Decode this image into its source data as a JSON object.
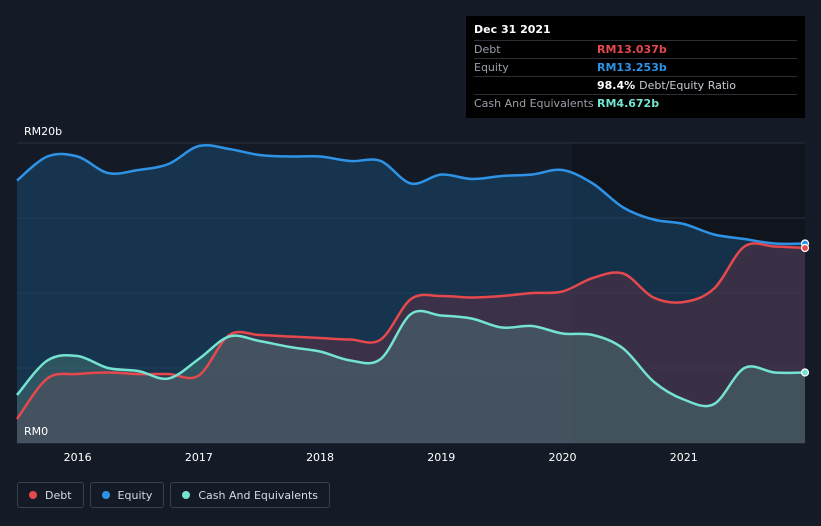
{
  "tooltip": {
    "date": "Dec 31 2021",
    "rows": [
      {
        "label": "Debt",
        "value": "RM13.037b",
        "color": "#e5484d"
      },
      {
        "label": "Equity",
        "value": "RM13.253b",
        "color": "#2e93e6"
      },
      {
        "label": "",
        "value": "98.4%",
        "suffix": "Debt/Equity Ratio",
        "color": "#ffffff"
      },
      {
        "label": "Cash And Equivalents",
        "value": "RM4.672b",
        "color": "#74e3d2"
      }
    ]
  },
  "legend": [
    {
      "label": "Debt",
      "color": "#e5484d"
    },
    {
      "label": "Equity",
      "color": "#2e93e6"
    },
    {
      "label": "Cash And Equivalents",
      "color": "#74e3d2"
    }
  ],
  "chart_data": {
    "type": "area",
    "title": "",
    "xlabel": "",
    "ylabel": "",
    "y_unit": "RM b",
    "ylim": [
      0,
      20
    ],
    "xlim": [
      2015.5,
      2022.0
    ],
    "y_tick_labels": [
      {
        "value": 20,
        "label": "RM20b"
      },
      {
        "value": 0,
        "label": "RM0"
      }
    ],
    "x_tick_labels": [
      "2016",
      "2017",
      "2018",
      "2019",
      "2020",
      "2021"
    ],
    "x_tick_values": [
      2016,
      2017,
      2018,
      2019,
      2020,
      2021
    ],
    "grid": true,
    "legend_position": "bottom-left",
    "series": [
      {
        "name": "Equity",
        "color": "#2e93e6",
        "x": [
          2015.5,
          2015.75,
          2016.0,
          2016.25,
          2016.5,
          2016.75,
          2017.0,
          2017.25,
          2017.5,
          2017.75,
          2018.0,
          2018.25,
          2018.5,
          2018.75,
          2019.0,
          2019.25,
          2019.5,
          2019.75,
          2020.0,
          2020.25,
          2020.5,
          2020.75,
          2021.0,
          2021.25,
          2021.5,
          2021.75,
          2022.0
        ],
        "values": [
          17.5,
          19.1,
          19.1,
          18.0,
          18.2,
          18.6,
          19.8,
          19.6,
          19.2,
          19.1,
          19.1,
          18.8,
          18.8,
          17.3,
          17.9,
          17.6,
          17.8,
          17.9,
          18.2,
          17.3,
          15.7,
          14.9,
          14.6,
          13.9,
          13.6,
          13.3,
          13.3
        ]
      },
      {
        "name": "Debt",
        "color": "#e5484d",
        "x": [
          2015.5,
          2015.75,
          2016.0,
          2016.25,
          2016.5,
          2016.75,
          2017.0,
          2017.25,
          2017.5,
          2017.75,
          2018.0,
          2018.25,
          2018.5,
          2018.75,
          2019.0,
          2019.25,
          2019.5,
          2019.75,
          2020.0,
          2020.25,
          2020.5,
          2020.75,
          2021.0,
          2021.25,
          2021.5,
          2021.75,
          2022.0
        ],
        "values": [
          1.6,
          4.3,
          4.6,
          4.7,
          4.6,
          4.6,
          4.5,
          7.2,
          7.2,
          7.1,
          7.0,
          6.9,
          6.9,
          9.6,
          9.8,
          9.7,
          9.8,
          10.0,
          10.1,
          11.0,
          11.3,
          9.7,
          9.4,
          10.3,
          13.1,
          13.1,
          13.0
        ]
      },
      {
        "name": "Cash And Equivalents",
        "color": "#74e3d2",
        "x": [
          2015.5,
          2015.75,
          2016.0,
          2016.25,
          2016.5,
          2016.75,
          2017.0,
          2017.25,
          2017.5,
          2017.75,
          2018.0,
          2018.25,
          2018.5,
          2018.75,
          2019.0,
          2019.25,
          2019.5,
          2019.75,
          2020.0,
          2020.25,
          2020.5,
          2020.75,
          2021.0,
          2021.25,
          2021.5,
          2021.75,
          2022.0
        ],
        "values": [
          3.2,
          5.5,
          5.8,
          5.0,
          4.8,
          4.3,
          5.6,
          7.1,
          6.8,
          6.4,
          6.1,
          5.5,
          5.6,
          8.6,
          8.5,
          8.3,
          7.7,
          7.8,
          7.3,
          7.2,
          6.3,
          4.1,
          2.9,
          2.6,
          5.0,
          4.7,
          4.7
        ]
      }
    ]
  }
}
